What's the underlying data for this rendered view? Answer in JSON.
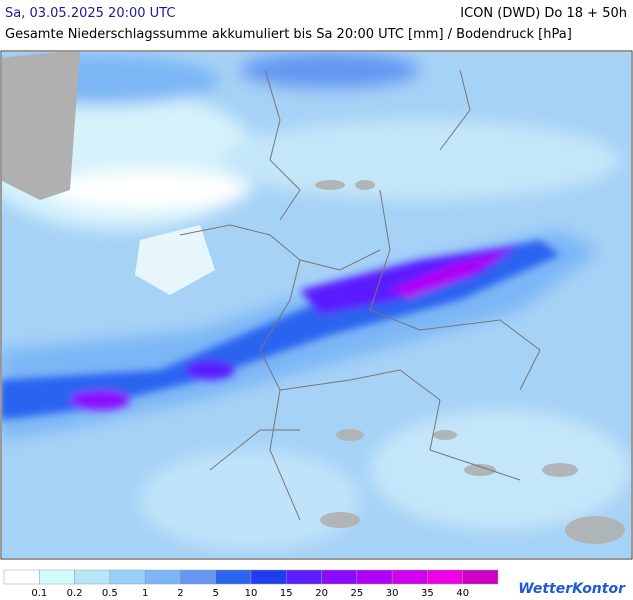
{
  "header": {
    "date": "Sa, 03.05.2025 20:00 UTC",
    "model": "ICON (DWD) Do 18 + 50h",
    "subtitle": "Gesamte Niederschlagssumme akkumuliert bis Sa 20:00 UTC [mm] / Bodendruck [hPa]"
  },
  "legend": {
    "colors": [
      "#ffffff",
      "#d2fcfc",
      "#b4e8f8",
      "#98d0f8",
      "#7cb6f6",
      "#6496f2",
      "#2c64f0",
      "#1e3cf0",
      "#5a1eff",
      "#8a0cff",
      "#b000f6",
      "#d000f0",
      "#ee00e6",
      "#cc00c4"
    ],
    "labels": [
      0.1,
      0.2,
      0.5,
      1,
      2,
      5,
      10,
      15,
      20,
      25,
      30,
      35,
      40
    ]
  },
  "logo": "WetterKontor"
}
